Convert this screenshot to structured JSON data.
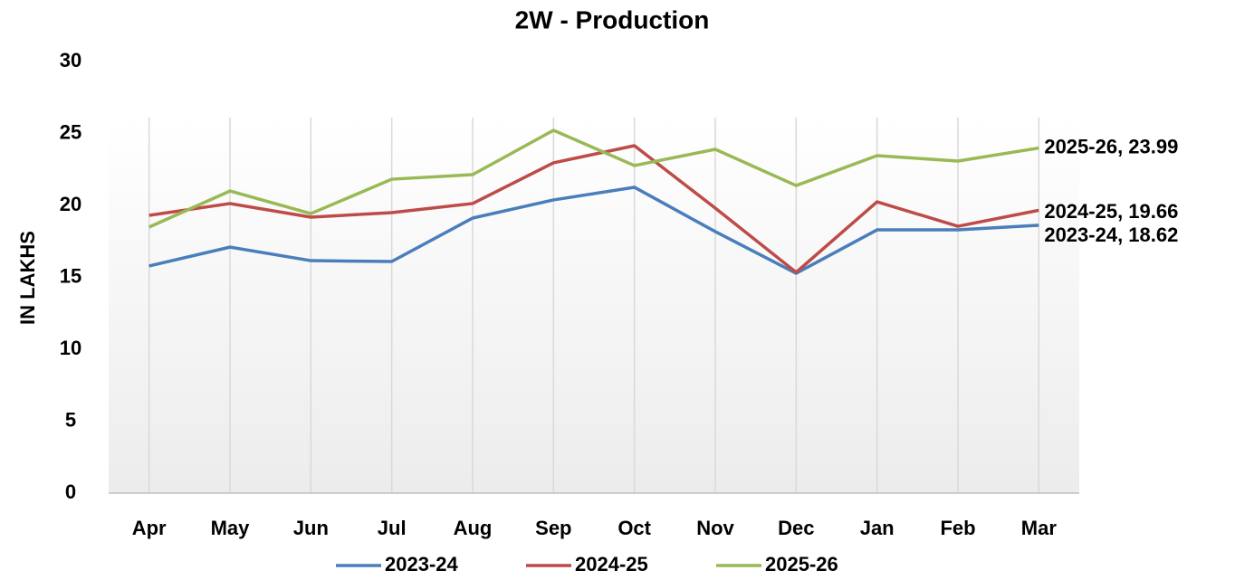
{
  "chart_data": {
    "type": "line",
    "title": "2W - Production",
    "y_label": "IN LAKHS",
    "categories": [
      "Apr",
      "May",
      "Jun",
      "Jul",
      "Aug",
      "Sep",
      "Oct",
      "Nov",
      "Dec",
      "Jan",
      "Feb",
      "Mar"
    ],
    "series": [
      {
        "name": "2023-24",
        "color": "#4a7ebb",
        "values": [
          15.79,
          17.1,
          16.16,
          16.1,
          19.12,
          20.38,
          21.26,
          18.18,
          15.28,
          18.3,
          18.3,
          18.62
        ],
        "value_labels": [
          null,
          null,
          null,
          null,
          null,
          null,
          null,
          null,
          null,
          null,
          null,
          "2023-24, 18.62"
        ]
      },
      {
        "name": "2024-25",
        "color": "#be4b48",
        "values": [
          19.31,
          20.13,
          19.18,
          19.5,
          20.13,
          22.96,
          24.15,
          19.81,
          15.35,
          20.25,
          18.55,
          19.66
        ],
        "value_labels": [
          null,
          null,
          null,
          null,
          null,
          null,
          null,
          null,
          null,
          null,
          null,
          "2024-25, 19.66"
        ]
      },
      {
        "name": "2025-26",
        "color": "#98b954",
        "values": [
          18.49,
          21.0,
          19.43,
          21.82,
          22.14,
          25.22,
          22.77,
          23.9,
          21.38,
          23.46,
          23.08,
          23.99
        ],
        "value_labels": [
          null,
          null,
          null,
          null,
          null,
          null,
          null,
          null,
          null,
          null,
          null,
          "2025-26, 23.99"
        ]
      }
    ],
    "ylim": [
      0,
      30
    ],
    "yticks": [
      0,
      5,
      10,
      15,
      20,
      25,
      30
    ],
    "grid": "x",
    "legend": "bottom"
  }
}
